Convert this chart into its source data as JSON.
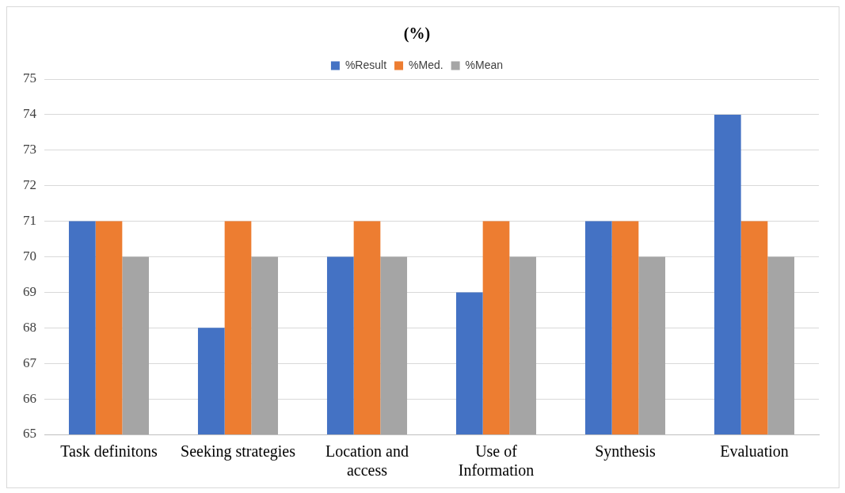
{
  "chart_data": {
    "type": "bar",
    "title": "(%)",
    "categories": [
      "Task definitons",
      "Seeking strategies",
      "Location and access",
      "Use of Information",
      "Synthesis",
      "Evaluation"
    ],
    "series": [
      {
        "name": "%Result",
        "color": "#4472c4",
        "values": [
          71,
          68,
          70,
          69,
          71,
          74
        ]
      },
      {
        "name": "%Med.",
        "color": "#ed7d31",
        "values": [
          71,
          71,
          71,
          71,
          71,
          71
        ]
      },
      {
        "name": "%Mean",
        "color": "#a5a5a5",
        "values": [
          70,
          70,
          70,
          70,
          70,
          70
        ]
      }
    ],
    "ylim": [
      65,
      75
    ],
    "yticks": [
      65,
      66,
      67,
      68,
      69,
      70,
      71,
      72,
      73,
      74,
      75
    ],
    "grid": "y",
    "legend": "top"
  }
}
